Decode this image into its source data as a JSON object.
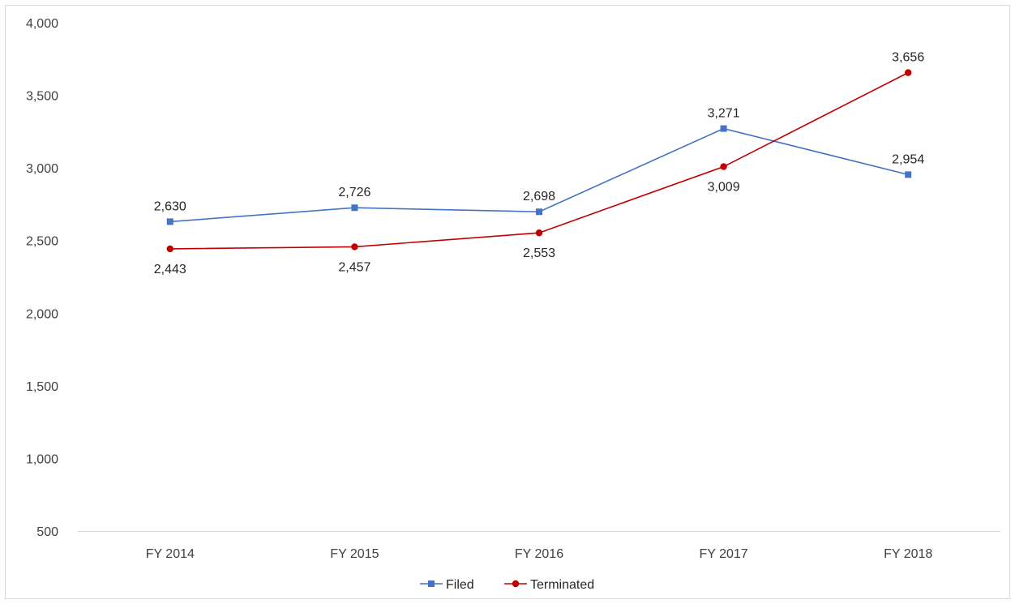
{
  "chart_data": {
    "type": "line",
    "title": "",
    "xlabel": "",
    "ylabel": "",
    "categories": [
      "FY 2014",
      "FY 2015",
      "FY 2016",
      "FY 2017",
      "FY 2018"
    ],
    "ylim": [
      500,
      4000
    ],
    "yticks": [
      500,
      1000,
      1500,
      2000,
      2500,
      3000,
      3500,
      4000
    ],
    "ytick_labels": [
      "500",
      "1,000",
      "1,500",
      "2,000",
      "2,500",
      "3,000",
      "3,500",
      "4,000"
    ],
    "grid": false,
    "legend_position": "bottom",
    "series": [
      {
        "name": "Filed",
        "color": "#4472C4",
        "marker": "square",
        "values": [
          2630,
          2726,
          2698,
          3271,
          2954
        ],
        "labels": [
          "2,630",
          "2,726",
          "2,698",
          "3,271",
          "2,954"
        ],
        "label_positions": [
          "above",
          "above",
          "above",
          "above",
          "above"
        ]
      },
      {
        "name": "Terminated",
        "color": "#C00000",
        "marker": "circle",
        "values": [
          2443,
          2457,
          2553,
          3009,
          3656
        ],
        "labels": [
          "2,443",
          "2,457",
          "2,553",
          "3,009",
          "3,656"
        ],
        "label_positions": [
          "below",
          "below",
          "below",
          "below",
          "above"
        ]
      }
    ]
  }
}
